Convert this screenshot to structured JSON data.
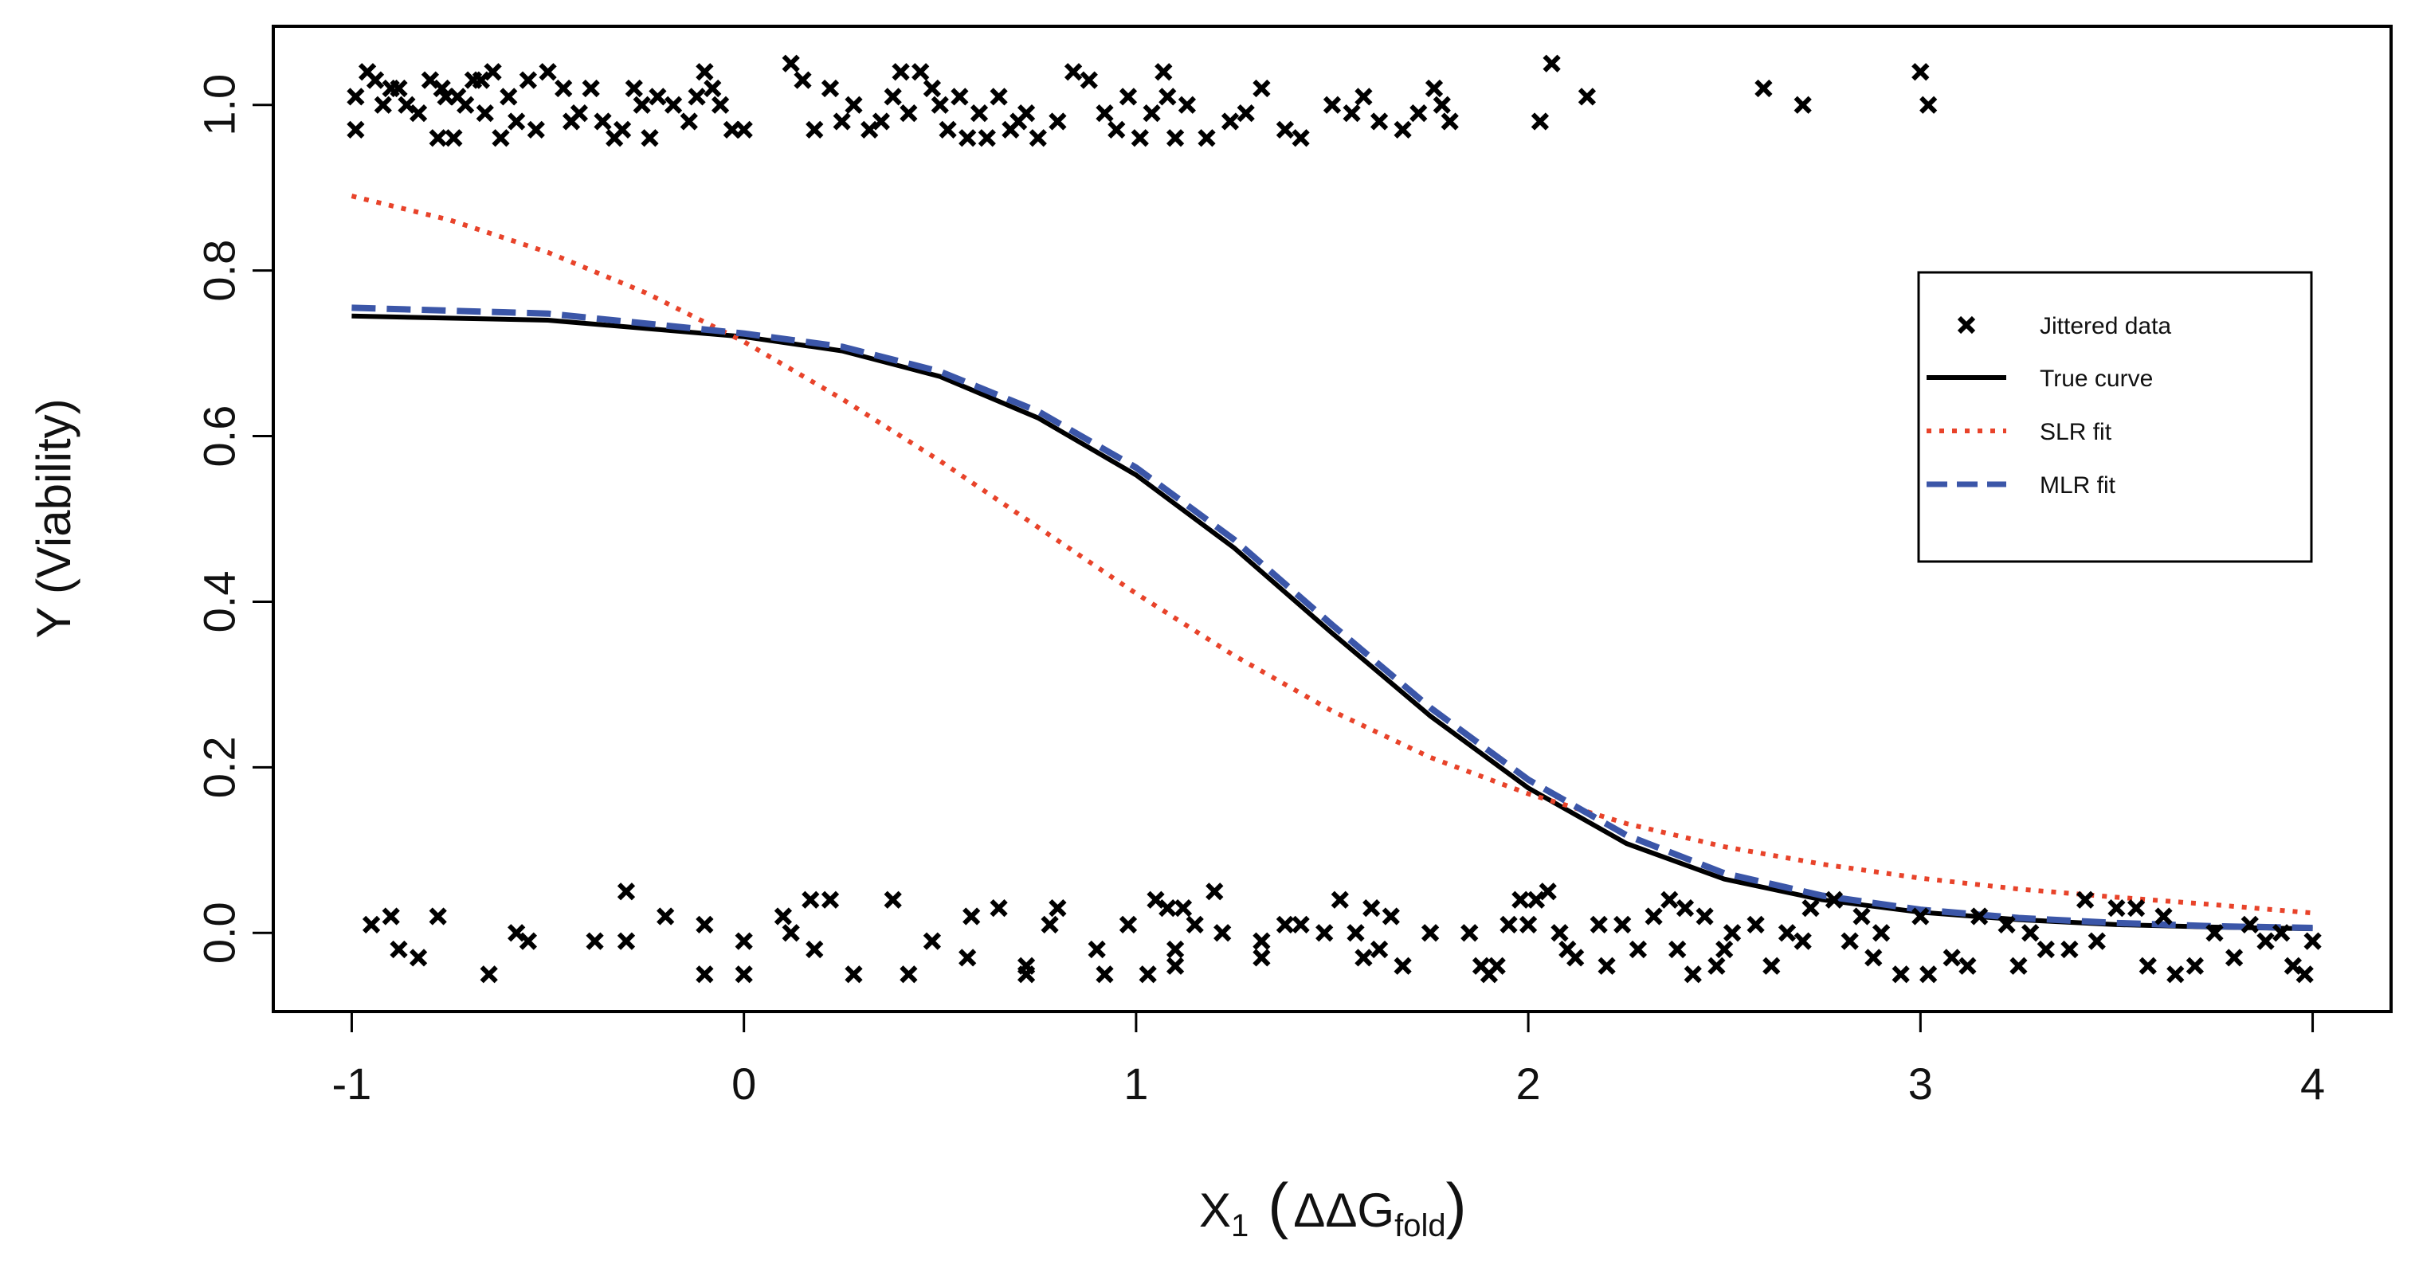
{
  "chart_data": {
    "type": "scatter",
    "title": "",
    "xlabel": {
      "prefix": "X",
      "prefix_subscript": "1",
      "open_paren": "(",
      "delta": "ΔΔG",
      "delta_subscript": "fold",
      "close_paren": ")"
    },
    "ylabel": "Y (Viability)",
    "xlim": [
      -1.2,
      4.2
    ],
    "ylim": [
      -0.095,
      1.095
    ],
    "x_ticks": [
      -1,
      0,
      1,
      2,
      3,
      4
    ],
    "x_tick_labels": [
      "-1",
      "0",
      "1",
      "2",
      "3",
      "4"
    ],
    "y_ticks": [
      0.0,
      0.2,
      0.4,
      0.6,
      0.8,
      1.0
    ],
    "y_tick_labels": [
      "0.0",
      "0.2",
      "0.4",
      "0.6",
      "0.8",
      "1.0"
    ],
    "legend": {
      "position": "right",
      "entries": [
        {
          "label": "Jittered data",
          "style": "marker"
        },
        {
          "label": "True curve",
          "style": "solid"
        },
        {
          "label": "SLR fit",
          "style": "dotted"
        },
        {
          "label": "MLR fit",
          "style": "dashed"
        }
      ]
    },
    "colors": {
      "points": "#000000",
      "true_curve": "#000000",
      "slr_fit": "#e8432a",
      "mlr_fit": "#3b56a8"
    },
    "series": [
      {
        "name": "Jittered data",
        "kind": "scatter",
        "points": [
          [
            -0.99,
            1.01
          ],
          [
            -0.99,
            0.97
          ],
          [
            -0.96,
            1.04
          ],
          [
            -0.94,
            1.03
          ],
          [
            -0.92,
            1.0
          ],
          [
            -0.9,
            1.02
          ],
          [
            -0.88,
            1.02
          ],
          [
            -0.86,
            1.0
          ],
          [
            -0.83,
            0.99
          ],
          [
            -0.8,
            1.03
          ],
          [
            -0.78,
            0.96
          ],
          [
            -0.77,
            1.02
          ],
          [
            -0.76,
            1.01
          ],
          [
            -0.74,
            0.96
          ],
          [
            -0.73,
            1.01
          ],
          [
            -0.71,
            1.0
          ],
          [
            -0.69,
            1.03
          ],
          [
            -0.67,
            1.03
          ],
          [
            -0.66,
            0.99
          ],
          [
            -0.64,
            1.04
          ],
          [
            -0.62,
            0.96
          ],
          [
            -0.6,
            1.01
          ],
          [
            -0.58,
            0.98
          ],
          [
            -0.55,
            1.03
          ],
          [
            -0.53,
            0.97
          ],
          [
            -0.5,
            1.04
          ],
          [
            -0.46,
            1.02
          ],
          [
            -0.44,
            0.98
          ],
          [
            -0.42,
            0.99
          ],
          [
            -0.39,
            1.02
          ],
          [
            -0.36,
            0.98
          ],
          [
            -0.33,
            0.96
          ],
          [
            -0.31,
            0.97
          ],
          [
            -0.28,
            1.02
          ],
          [
            -0.26,
            1.0
          ],
          [
            -0.24,
            0.96
          ],
          [
            -0.22,
            1.01
          ],
          [
            -0.18,
            1.0
          ],
          [
            -0.14,
            0.98
          ],
          [
            -0.12,
            1.01
          ],
          [
            -0.1,
            1.04
          ],
          [
            -0.08,
            1.02
          ],
          [
            -0.06,
            1.0
          ],
          [
            -0.03,
            0.97
          ],
          [
            0.0,
            0.97
          ],
          [
            0.12,
            1.05
          ],
          [
            0.15,
            1.03
          ],
          [
            0.18,
            0.97
          ],
          [
            0.22,
            1.02
          ],
          [
            0.25,
            0.98
          ],
          [
            0.28,
            1.0
          ],
          [
            0.32,
            0.97
          ],
          [
            0.35,
            0.98
          ],
          [
            0.38,
            1.01
          ],
          [
            0.4,
            1.04
          ],
          [
            0.42,
            0.99
          ],
          [
            0.45,
            1.04
          ],
          [
            0.48,
            1.02
          ],
          [
            0.5,
            1.0
          ],
          [
            0.52,
            0.97
          ],
          [
            0.55,
            1.01
          ],
          [
            0.57,
            0.96
          ],
          [
            0.6,
            0.99
          ],
          [
            0.62,
            0.96
          ],
          [
            0.65,
            1.01
          ],
          [
            0.68,
            0.97
          ],
          [
            0.7,
            0.98
          ],
          [
            0.72,
            0.99
          ],
          [
            0.75,
            0.96
          ],
          [
            0.8,
            0.98
          ],
          [
            0.84,
            1.04
          ],
          [
            0.88,
            1.03
          ],
          [
            0.92,
            0.99
          ],
          [
            0.95,
            0.97
          ],
          [
            0.98,
            1.01
          ],
          [
            1.01,
            0.96
          ],
          [
            1.04,
            0.99
          ],
          [
            1.07,
            1.04
          ],
          [
            1.08,
            1.01
          ],
          [
            1.1,
            0.96
          ],
          [
            1.13,
            1.0
          ],
          [
            1.18,
            0.96
          ],
          [
            1.24,
            0.98
          ],
          [
            1.28,
            0.99
          ],
          [
            1.32,
            1.02
          ],
          [
            1.38,
            0.97
          ],
          [
            1.42,
            0.96
          ],
          [
            1.5,
            1.0
          ],
          [
            1.55,
            0.99
          ],
          [
            1.58,
            1.01
          ],
          [
            1.62,
            0.98
          ],
          [
            1.68,
            0.97
          ],
          [
            1.72,
            0.99
          ],
          [
            1.76,
            1.02
          ],
          [
            1.78,
            1.0
          ],
          [
            1.8,
            0.98
          ],
          [
            2.03,
            0.98
          ],
          [
            2.06,
            1.05
          ],
          [
            2.15,
            1.01
          ],
          [
            2.6,
            1.02
          ],
          [
            2.7,
            1.0
          ],
          [
            3.0,
            1.04
          ],
          [
            3.02,
            1.0
          ],
          [
            -0.95,
            0.01
          ],
          [
            -0.9,
            0.02
          ],
          [
            -0.88,
            -0.02
          ],
          [
            -0.83,
            -0.03
          ],
          [
            -0.78,
            0.02
          ],
          [
            -0.65,
            -0.05
          ],
          [
            -0.58,
            0.0
          ],
          [
            -0.55,
            -0.01
          ],
          [
            -0.38,
            -0.01
          ],
          [
            -0.3,
            0.05
          ],
          [
            -0.3,
            -0.01
          ],
          [
            -0.2,
            0.02
          ],
          [
            -0.1,
            0.01
          ],
          [
            -0.1,
            -0.05
          ],
          [
            0.0,
            -0.01
          ],
          [
            0.0,
            -0.05
          ],
          [
            0.1,
            0.02
          ],
          [
            0.12,
            0.0
          ],
          [
            0.17,
            0.04
          ],
          [
            0.18,
            -0.02
          ],
          [
            0.22,
            0.04
          ],
          [
            0.28,
            -0.05
          ],
          [
            0.38,
            0.04
          ],
          [
            0.42,
            -0.05
          ],
          [
            0.48,
            -0.01
          ],
          [
            0.57,
            -0.03
          ],
          [
            0.58,
            0.02
          ],
          [
            0.65,
            0.03
          ],
          [
            0.72,
            -0.04
          ],
          [
            0.72,
            -0.05
          ],
          [
            0.78,
            0.01
          ],
          [
            0.8,
            0.03
          ],
          [
            0.9,
            -0.02
          ],
          [
            0.92,
            -0.05
          ],
          [
            0.98,
            0.01
          ],
          [
            1.03,
            -0.05
          ],
          [
            1.05,
            0.04
          ],
          [
            1.08,
            0.03
          ],
          [
            1.1,
            -0.02
          ],
          [
            1.1,
            -0.04
          ],
          [
            1.12,
            0.03
          ],
          [
            1.15,
            0.01
          ],
          [
            1.2,
            0.05
          ],
          [
            1.22,
            0.0
          ],
          [
            1.32,
            -0.01
          ],
          [
            1.32,
            -0.03
          ],
          [
            1.38,
            0.01
          ],
          [
            1.42,
            0.01
          ],
          [
            1.48,
            0.0
          ],
          [
            1.52,
            0.04
          ],
          [
            1.56,
            0.0
          ],
          [
            1.58,
            -0.03
          ],
          [
            1.6,
            0.03
          ],
          [
            1.62,
            -0.02
          ],
          [
            1.65,
            0.02
          ],
          [
            1.68,
            -0.04
          ],
          [
            1.75,
            0.0
          ],
          [
            1.85,
            0.0
          ],
          [
            1.88,
            -0.04
          ],
          [
            1.9,
            -0.05
          ],
          [
            1.92,
            -0.04
          ],
          [
            1.95,
            0.01
          ],
          [
            1.98,
            0.04
          ],
          [
            2.0,
            0.01
          ],
          [
            2.02,
            0.04
          ],
          [
            2.05,
            0.05
          ],
          [
            2.08,
            0.0
          ],
          [
            2.1,
            -0.02
          ],
          [
            2.12,
            -0.03
          ],
          [
            2.18,
            0.01
          ],
          [
            2.2,
            -0.04
          ],
          [
            2.24,
            0.01
          ],
          [
            2.28,
            -0.02
          ],
          [
            2.32,
            0.02
          ],
          [
            2.36,
            0.04
          ],
          [
            2.38,
            -0.02
          ],
          [
            2.4,
            0.03
          ],
          [
            2.42,
            -0.05
          ],
          [
            2.45,
            0.02
          ],
          [
            2.48,
            -0.04
          ],
          [
            2.5,
            -0.02
          ],
          [
            2.52,
            0.0
          ],
          [
            2.58,
            0.01
          ],
          [
            2.62,
            -0.04
          ],
          [
            2.66,
            0.0
          ],
          [
            2.7,
            -0.01
          ],
          [
            2.72,
            0.03
          ],
          [
            2.78,
            0.04
          ],
          [
            2.82,
            -0.01
          ],
          [
            2.85,
            0.02
          ],
          [
            2.88,
            -0.03
          ],
          [
            2.9,
            0.0
          ],
          [
            2.95,
            -0.05
          ],
          [
            3.0,
            0.02
          ],
          [
            3.02,
            -0.05
          ],
          [
            3.08,
            -0.03
          ],
          [
            3.12,
            -0.04
          ],
          [
            3.15,
            0.02
          ],
          [
            3.22,
            0.01
          ],
          [
            3.25,
            -0.04
          ],
          [
            3.28,
            0.0
          ],
          [
            3.32,
            -0.02
          ],
          [
            3.38,
            -0.02
          ],
          [
            3.42,
            0.04
          ],
          [
            3.45,
            -0.01
          ],
          [
            3.5,
            0.03
          ],
          [
            3.55,
            0.03
          ],
          [
            3.58,
            -0.04
          ],
          [
            3.62,
            0.02
          ],
          [
            3.65,
            -0.05
          ],
          [
            3.7,
            -0.04
          ],
          [
            3.75,
            0.0
          ],
          [
            3.8,
            -0.03
          ],
          [
            3.84,
            0.01
          ],
          [
            3.88,
            -0.01
          ],
          [
            3.92,
            0.0
          ],
          [
            3.95,
            -0.04
          ],
          [
            3.98,
            -0.05
          ],
          [
            4.0,
            -0.01
          ]
        ]
      },
      {
        "name": "True curve",
        "kind": "line",
        "points": [
          [
            -1,
            0.745
          ],
          [
            -0.5,
            0.74
          ],
          [
            0,
            0.72
          ],
          [
            0.25,
            0.703
          ],
          [
            0.5,
            0.672
          ],
          [
            0.75,
            0.622
          ],
          [
            1,
            0.553
          ],
          [
            1.25,
            0.465
          ],
          [
            1.5,
            0.362
          ],
          [
            1.75,
            0.262
          ],
          [
            2,
            0.175
          ],
          [
            2.25,
            0.108
          ],
          [
            2.5,
            0.065
          ],
          [
            2.75,
            0.04
          ],
          [
            3,
            0.025
          ],
          [
            3.25,
            0.016
          ],
          [
            3.5,
            0.01
          ],
          [
            3.75,
            0.007
          ],
          [
            4,
            0.005
          ]
        ]
      },
      {
        "name": "SLR fit",
        "kind": "line",
        "points": [
          [
            -1,
            0.89
          ],
          [
            -0.75,
            0.861
          ],
          [
            -0.5,
            0.822
          ],
          [
            -0.25,
            0.773
          ],
          [
            0,
            0.714
          ],
          [
            0.25,
            0.645
          ],
          [
            0.5,
            0.57
          ],
          [
            0.75,
            0.49
          ],
          [
            1,
            0.41
          ],
          [
            1.25,
            0.335
          ],
          [
            1.5,
            0.268
          ],
          [
            1.75,
            0.212
          ],
          [
            2,
            0.168
          ],
          [
            2.25,
            0.132
          ],
          [
            2.5,
            0.104
          ],
          [
            2.75,
            0.083
          ],
          [
            3,
            0.066
          ],
          [
            3.25,
            0.053
          ],
          [
            3.5,
            0.043
          ],
          [
            3.75,
            0.034
          ],
          [
            4,
            0.024
          ]
        ]
      },
      {
        "name": "MLR fit",
        "kind": "line",
        "points": [
          [
            -1,
            0.755
          ],
          [
            -0.5,
            0.748
          ],
          [
            0,
            0.724
          ],
          [
            0.25,
            0.708
          ],
          [
            0.5,
            0.678
          ],
          [
            0.75,
            0.63
          ],
          [
            1,
            0.562
          ],
          [
            1.25,
            0.475
          ],
          [
            1.5,
            0.372
          ],
          [
            1.75,
            0.272
          ],
          [
            2,
            0.185
          ],
          [
            2.25,
            0.118
          ],
          [
            2.5,
            0.072
          ],
          [
            2.75,
            0.045
          ],
          [
            3,
            0.028
          ],
          [
            3.25,
            0.018
          ],
          [
            3.5,
            0.012
          ],
          [
            3.75,
            0.008
          ],
          [
            4,
            0.006
          ]
        ]
      }
    ]
  }
}
